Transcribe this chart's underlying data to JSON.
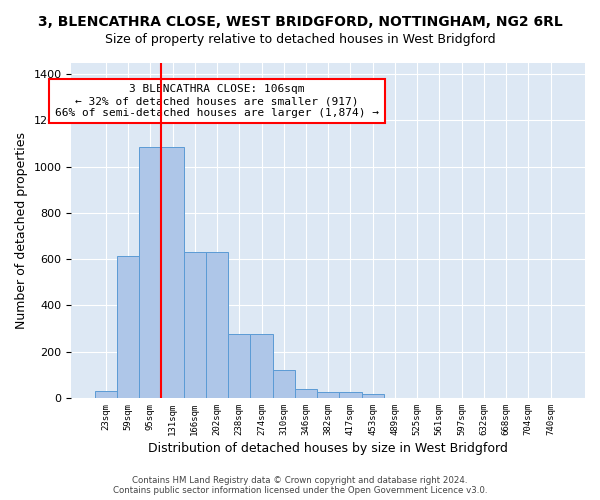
{
  "title": "3, BLENCATHRA CLOSE, WEST BRIDGFORD, NOTTINGHAM, NG2 6RL",
  "subtitle": "Size of property relative to detached houses in West Bridgford",
  "xlabel": "Distribution of detached houses by size in West Bridgford",
  "ylabel": "Number of detached properties",
  "bin_labels": [
    "23sqm",
    "59sqm",
    "95sqm",
    "131sqm",
    "166sqm",
    "202sqm",
    "238sqm",
    "274sqm",
    "310sqm",
    "346sqm",
    "382sqm",
    "417sqm",
    "453sqm",
    "489sqm",
    "525sqm",
    "561sqm",
    "597sqm",
    "632sqm",
    "668sqm",
    "704sqm",
    "740sqm"
  ],
  "bar_values": [
    30,
    615,
    1085,
    1085,
    630,
    630,
    275,
    275,
    120,
    40,
    25,
    25,
    15,
    0,
    0,
    0,
    0,
    0,
    0,
    0,
    0
  ],
  "bar_color": "#aec6e8",
  "bar_edge_color": "#5b9bd5",
  "vline_x": 2.5,
  "vline_color": "red",
  "annotation_text": "3 BLENCATHRA CLOSE: 106sqm\n← 32% of detached houses are smaller (917)\n66% of semi-detached houses are larger (1,874) →",
  "annotation_box_color": "white",
  "annotation_box_edge_color": "red",
  "ylim": [
    0,
    1450
  ],
  "yticks": [
    0,
    200,
    400,
    600,
    800,
    1000,
    1200,
    1400
  ],
  "background_color": "#dde8f4",
  "footer_line1": "Contains HM Land Registry data © Crown copyright and database right 2024.",
  "footer_line2": "Contains public sector information licensed under the Open Government Licence v3.0.",
  "title_fontsize": 10,
  "subtitle_fontsize": 9,
  "xlabel_fontsize": 9,
  "ylabel_fontsize": 9,
  "annotation_fontsize": 8.0
}
